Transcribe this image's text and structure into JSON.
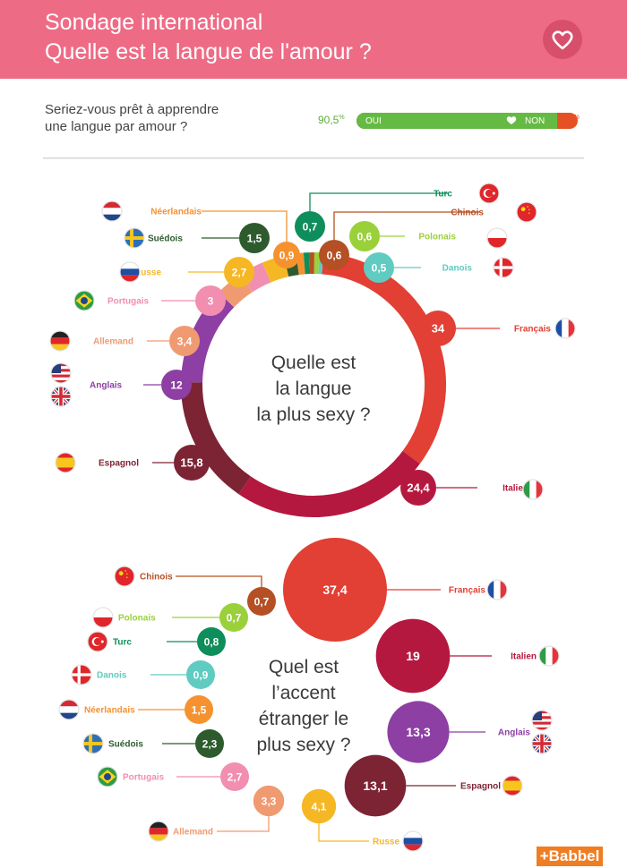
{
  "header": {
    "title_line1": "Sondage international",
    "title_line2": "Quelle est la langue de l'amour ?"
  },
  "survey": {
    "question_line1": "Seriez-vous prêt à apprendre",
    "question_line2": "une langue par amour ?",
    "yes_label": "OUI",
    "no_label": "NON",
    "yes_value": 90.5,
    "no_value": 9.5,
    "yes_pct_text": "90,5",
    "no_pct_text": "9,5",
    "pct_sign": "%",
    "yes_color": "#65ba44",
    "no_color": "#e65025"
  },
  "brand": "+Babbel",
  "chart_data": [
    {
      "type": "pie",
      "title_lines": [
        "Quelle est",
        "la langue",
        "la plus sexy ?"
      ],
      "slices": [
        {
          "label": "Français",
          "value": 34,
          "value_text": "34",
          "color": "#e23f35",
          "flag": "fr"
        },
        {
          "label": "Italien",
          "value": 24.4,
          "value_text": "24,4",
          "color": "#b5183f",
          "flag": "it"
        },
        {
          "label": "Espagnol",
          "value": 15.8,
          "value_text": "15,8",
          "color": "#7c2434",
          "flag": "es"
        },
        {
          "label": "Anglais",
          "value": 12,
          "value_text": "12",
          "color": "#8d3fa3",
          "flag": "us-gb"
        },
        {
          "label": "Allemand",
          "value": 3.4,
          "value_text": "3,4",
          "color": "#f09a72",
          "flag": "de"
        },
        {
          "label": "Portugais",
          "value": 3,
          "value_text": "3",
          "color": "#f28eb0",
          "flag": "br"
        },
        {
          "label": "Russe",
          "value": 2.7,
          "value_text": "2,7",
          "color": "#f6b724",
          "flag": "ru"
        },
        {
          "label": "Suédois",
          "value": 1.5,
          "value_text": "1,5",
          "color": "#2e5b2e",
          "flag": "se"
        },
        {
          "label": "Néerlandais",
          "value": 0.9,
          "value_text": "0,9",
          "color": "#f5922f",
          "flag": "nl"
        },
        {
          "label": "Turc",
          "value": 0.7,
          "value_text": "0,7",
          "color": "#0e8e5a",
          "flag": "tr"
        },
        {
          "label": "Chinois",
          "value": 0.6,
          "value_text": "0,6",
          "color": "#b45024",
          "flag": "cn"
        },
        {
          "label": "Polonais",
          "value": 0.6,
          "value_text": "0,6",
          "color": "#9ad03a",
          "flag": "pl"
        },
        {
          "label": "Danois",
          "value": 0.5,
          "value_text": "0,5",
          "color": "#5fcbc1",
          "flag": "dk"
        }
      ]
    },
    {
      "type": "scatter",
      "title_lines": [
        "Quel est",
        "l’accent",
        "étranger le",
        "plus sexy ?"
      ],
      "series": [
        {
          "label": "Français",
          "value": 37.4,
          "value_text": "37,4",
          "color": "#e23f35",
          "flag": "fr"
        },
        {
          "label": "Italien",
          "value": 19,
          "value_text": "19",
          "color": "#b5183f",
          "flag": "it"
        },
        {
          "label": "Anglais",
          "value": 13.3,
          "value_text": "13,3",
          "color": "#8d3fa3",
          "flag": "us-gb"
        },
        {
          "label": "Espagnol",
          "value": 13.1,
          "value_text": "13,1",
          "color": "#7c2434",
          "flag": "es"
        },
        {
          "label": "Russe",
          "value": 4.1,
          "value_text": "4,1",
          "color": "#f6b724",
          "flag": "ru"
        },
        {
          "label": "Allemand",
          "value": 3.3,
          "value_text": "3,3",
          "color": "#f09a72",
          "flag": "de"
        },
        {
          "label": "Portugais",
          "value": 2.7,
          "value_text": "2,7",
          "color": "#f28eb0",
          "flag": "br"
        },
        {
          "label": "Suédois",
          "value": 2.3,
          "value_text": "2,3",
          "color": "#2e5b2e",
          "flag": "se"
        },
        {
          "label": "Néerlandais",
          "value": 1.5,
          "value_text": "1,5",
          "color": "#f5922f",
          "flag": "nl"
        },
        {
          "label": "Danois",
          "value": 0.9,
          "value_text": "0,9",
          "color": "#5fcbc1",
          "flag": "dk"
        },
        {
          "label": "Turc",
          "value": 0.8,
          "value_text": "0,8",
          "color": "#0e8e5a",
          "flag": "tr"
        },
        {
          "label": "Polonais",
          "value": 0.7,
          "value_text": "0,7",
          "color": "#9ad03a",
          "flag": "pl"
        },
        {
          "label": "Chinois",
          "value": 0.7,
          "value_text": "0,7",
          "color": "#b45024",
          "flag": "cn"
        }
      ]
    }
  ]
}
